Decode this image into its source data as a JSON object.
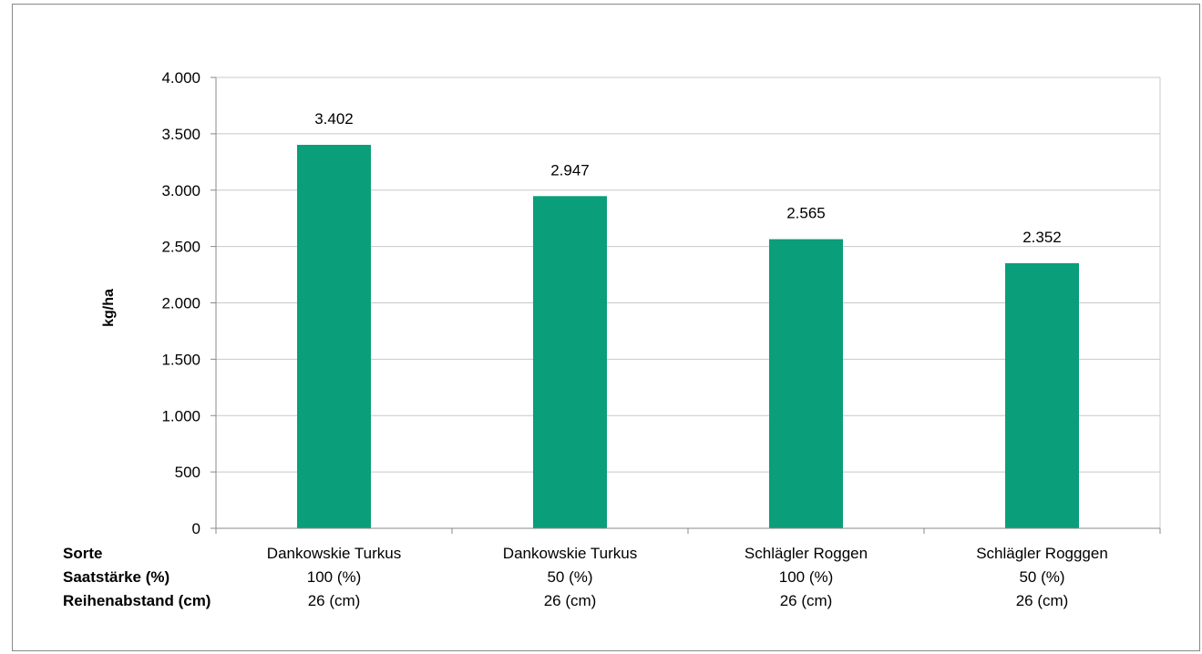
{
  "chart_data": {
    "type": "bar",
    "ylabel": "kg/ha",
    "ylim": [
      0,
      4000
    ],
    "yticks": [
      0,
      500,
      1000,
      1500,
      2000,
      2500,
      3000,
      3500,
      4000
    ],
    "ytick_labels": [
      "0",
      "500",
      "1.000",
      "1.500",
      "2.000",
      "2.500",
      "3.000",
      "3.500",
      "4.000"
    ],
    "grid": true,
    "bar_color": "#0a9e7a",
    "values": [
      3402,
      2947,
      2565,
      2352
    ],
    "value_labels": [
      "3.402",
      "2.947",
      "2.565",
      "2.352"
    ],
    "table": {
      "rows": [
        {
          "label": "Sorte",
          "values": [
            "Dankowskie Turkus",
            "Dankowskie Turkus",
            "Schlägler Roggen",
            "Schlägler Rogggen"
          ]
        },
        {
          "label": "Saatstärke (%)",
          "values": [
            "100 (%)",
            "50 (%)",
            "100 (%)",
            "50 (%)"
          ]
        },
        {
          "label": "Reihenabstand (cm)",
          "values": [
            "26 (cm)",
            "26 (cm)",
            "26 (cm)",
            "26 (cm)"
          ]
        }
      ]
    }
  }
}
